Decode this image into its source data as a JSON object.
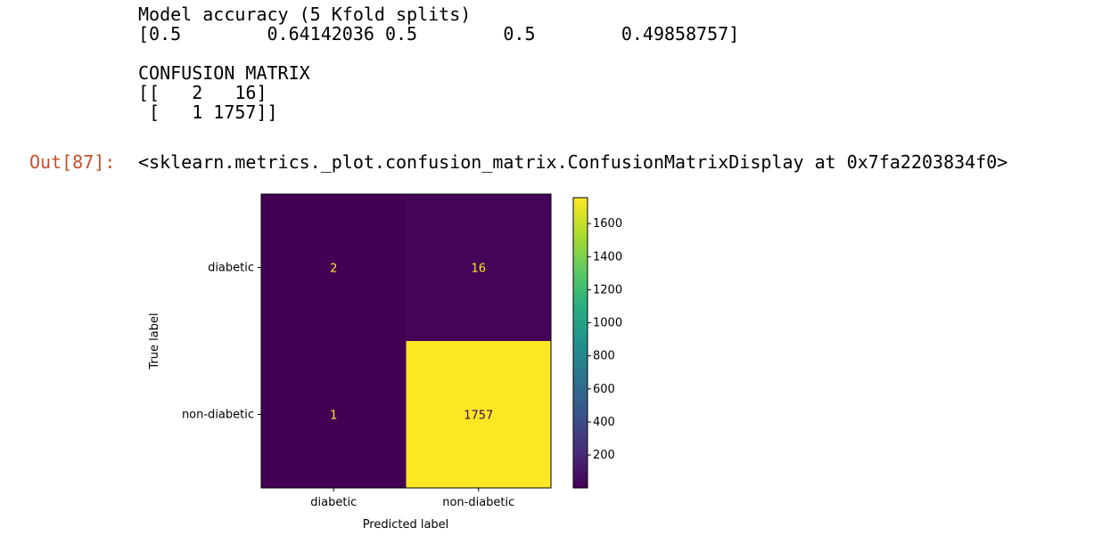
{
  "notebook": {
    "stdout_lines": [
      "Model accuracy (5 Kfold splits)",
      "[0.5        0.64142036 0.5        0.5        0.49858757]",
      "",
      "CONFUSION MATRIX",
      "[[   2   16]",
      " [   1 1757]]"
    ],
    "out_prompt": "Out[87]:",
    "out_repr": "<sklearn.metrics._plot.confusion_matrix.ConfusionMatrixDisplay at 0x7fa2203834f0>",
    "prompt_color": "#c8502a"
  },
  "chart_data": {
    "type": "heatmap",
    "x_categories": [
      "diabetic",
      "non-diabetic"
    ],
    "y_categories": [
      "diabetic",
      "non-diabetic"
    ],
    "values": [
      [
        2,
        16
      ],
      [
        1,
        1757
      ]
    ],
    "xlabel": "Predicted label",
    "ylabel": "True label",
    "title": "",
    "colormap": "viridis",
    "colorbar": {
      "range": [
        1,
        1757
      ],
      "ticks": [
        200,
        400,
        600,
        800,
        1000,
        1200,
        1400,
        1600
      ]
    },
    "text_colors": {
      "on_dark": "#fde725",
      "on_light": "#440154"
    }
  }
}
